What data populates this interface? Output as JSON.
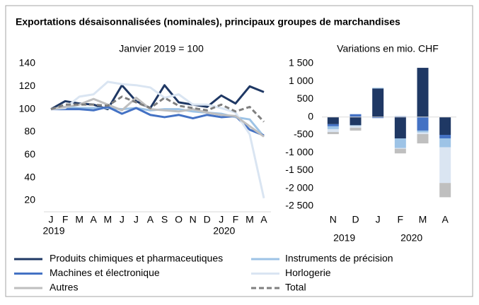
{
  "title": "Exportations désaisonnalisées (nominales), principaux groupes de marchandises",
  "chart_data": [
    {
      "type": "line",
      "subtitle": "Janvier 2019 = 100",
      "categories": [
        "J",
        "F",
        "M",
        "A",
        "M",
        "J",
        "J",
        "A",
        "S",
        "O",
        "N",
        "D",
        "J",
        "F",
        "M",
        "A"
      ],
      "x_group_labels": [
        "2019",
        null,
        null,
        null,
        null,
        null,
        null,
        null,
        null,
        null,
        null,
        null,
        "2020",
        null,
        null,
        null
      ],
      "ylim": [
        15,
        140
      ],
      "yticks": [
        20,
        40,
        60,
        80,
        100,
        120,
        140
      ],
      "series": [
        {
          "name": "Produits chimiques et pharmaceutiques",
          "color": "#1f3864",
          "values": [
            100,
            107,
            105,
            104,
            100,
            121,
            107,
            101,
            121,
            106,
            104,
            102,
            112,
            105,
            120,
            115
          ]
        },
        {
          "name": "Instruments de précision",
          "color": "#9dc3e6",
          "values": [
            100,
            102,
            101,
            101,
            101,
            100,
            101,
            99,
            100,
            100,
            98,
            97,
            96,
            93,
            91,
            76
          ]
        },
        {
          "name": "Machines et électronique",
          "color": "#4472c4",
          "values": [
            100,
            100,
            100,
            99,
            102,
            96,
            101,
            95,
            93,
            95,
            92,
            95,
            93,
            94,
            82,
            77
          ]
        },
        {
          "name": "Horlogerie",
          "color": "#dae5f2",
          "values": [
            100,
            101,
            111,
            113,
            124,
            122,
            121,
            119,
            110,
            113,
            104,
            104,
            101,
            97,
            78,
            22
          ]
        },
        {
          "name": "Autres",
          "color": "#bfbfbf",
          "values": [
            100,
            102,
            104,
            109,
            104,
            99,
            110,
            100,
            99,
            98,
            100,
            97,
            95,
            94,
            85,
            76
          ]
        },
        {
          "name": "Total",
          "color": "#7f7f7f",
          "dashed": true,
          "values": [
            100,
            104,
            104,
            104,
            103,
            111,
            106,
            101,
            110,
            103,
            101,
            99,
            104,
            98,
            102,
            89
          ]
        }
      ]
    },
    {
      "type": "stacked-bar",
      "subtitle": "Variations en mio. CHF",
      "categories": [
        "N",
        "D",
        "J",
        "F",
        "M",
        "A"
      ],
      "x_group_labels": [
        "2019",
        null,
        "2020",
        null,
        null,
        null
      ],
      "ylim": [
        -2500,
        1500
      ],
      "yticks": [
        {
          "value": 1500,
          "label": "1 500"
        },
        {
          "value": 1000,
          "label": "1 000"
        },
        500,
        0,
        -500,
        {
          "value": -1000,
          "label": "-1 000"
        },
        {
          "value": -1500,
          "label": "-1 500"
        },
        {
          "value": -2000,
          "label": "-2 000"
        },
        {
          "value": -2500,
          "label": "-2 500"
        }
      ],
      "series": [
        {
          "color": "#1f3864",
          "values": [
            -200,
            -230,
            800,
            -600,
            1380,
            -500
          ]
        },
        {
          "color": "#4472c4",
          "values": [
            -60,
            80,
            -30,
            20,
            -380,
            -100
          ]
        },
        {
          "color": "#9dc3e6",
          "values": [
            -80,
            -20,
            20,
            -270,
            -50,
            -250
          ]
        },
        {
          "color": "#dae5f2",
          "values": [
            -80,
            -50,
            0,
            -20,
            -50,
            -1000
          ]
        },
        {
          "color": "#bfbfbf",
          "values": [
            -60,
            -80,
            0,
            -130,
            -260,
            -400
          ]
        }
      ]
    }
  ]
}
